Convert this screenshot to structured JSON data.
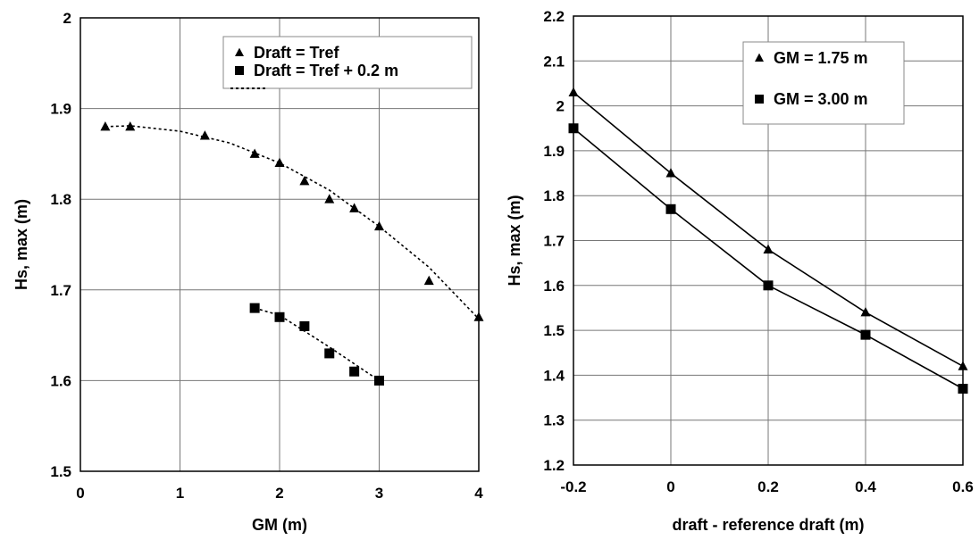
{
  "chart_data": [
    {
      "type": "scatter",
      "xlabel": "GM (m)",
      "ylabel": "Hs, max (m)",
      "xlim": [
        0,
        4
      ],
      "ylim": [
        1.5,
        2.0
      ],
      "xticks": [
        "0",
        "1",
        "2",
        "3",
        "4"
      ],
      "yticks": [
        "1.5",
        "1.6",
        "1.7",
        "1.8",
        "1.9",
        "2"
      ],
      "grid": true,
      "legend_position": "top-right",
      "legend": [
        "Draft = Tref",
        "Draft = Tref + 0.2 m"
      ],
      "series": [
        {
          "name": "Draft = Tref",
          "marker": "triangle",
          "x": [
            0.25,
            0.5,
            1.25,
            1.75,
            2.0,
            2.25,
            2.5,
            2.75,
            3.0,
            3.5,
            4.0
          ],
          "y": [
            1.88,
            1.88,
            1.87,
            1.85,
            1.84,
            1.82,
            1.8,
            1.79,
            1.77,
            1.71,
            1.67
          ]
        },
        {
          "name": "Draft = Tref + 0.2 m",
          "marker": "square",
          "x": [
            1.75,
            2.0,
            2.25,
            2.5,
            2.75,
            3.0
          ],
          "y": [
            1.68,
            1.67,
            1.66,
            1.63,
            1.61,
            1.6
          ]
        }
      ],
      "trendlines": [
        {
          "style": "dotted",
          "x": [
            0.25,
            0.5,
            1.0,
            1.5,
            2.0,
            2.5,
            3.0,
            3.5,
            4.0
          ],
          "y": [
            1.88,
            1.881,
            1.875,
            1.862,
            1.84,
            1.81,
            1.77,
            1.725,
            1.668
          ]
        },
        {
          "style": "dotted",
          "x": [
            1.75,
            2.0,
            2.5,
            3.0
          ],
          "y": [
            1.68,
            1.672,
            1.637,
            1.6
          ]
        }
      ]
    },
    {
      "type": "line",
      "xlabel": "draft - reference draft (m)",
      "ylabel": "Hs, max (m)",
      "xlim": [
        -0.2,
        0.6
      ],
      "ylim": [
        1.2,
        2.2
      ],
      "xticks": [
        "-0.2",
        "0",
        "0.2",
        "0.4",
        "0.6"
      ],
      "yticks": [
        "1.2",
        "1.3",
        "1.4",
        "1.5",
        "1.6",
        "1.7",
        "1.8",
        "1.9",
        "2",
        "2.1",
        "2.2"
      ],
      "grid": true,
      "legend_position": "top-right",
      "legend": [
        "GM = 1.75 m",
        "GM = 3.00 m"
      ],
      "series": [
        {
          "name": "GM = 1.75 m",
          "marker": "triangle",
          "x": [
            -0.2,
            0.0,
            0.2,
            0.4,
            0.6
          ],
          "y": [
            2.03,
            1.85,
            1.68,
            1.54,
            1.42
          ]
        },
        {
          "name": "GM = 3.00 m",
          "marker": "square",
          "x": [
            -0.2,
            0.0,
            0.2,
            0.4,
            0.6
          ],
          "y": [
            1.95,
            1.77,
            1.6,
            1.49,
            1.37
          ]
        }
      ]
    }
  ]
}
